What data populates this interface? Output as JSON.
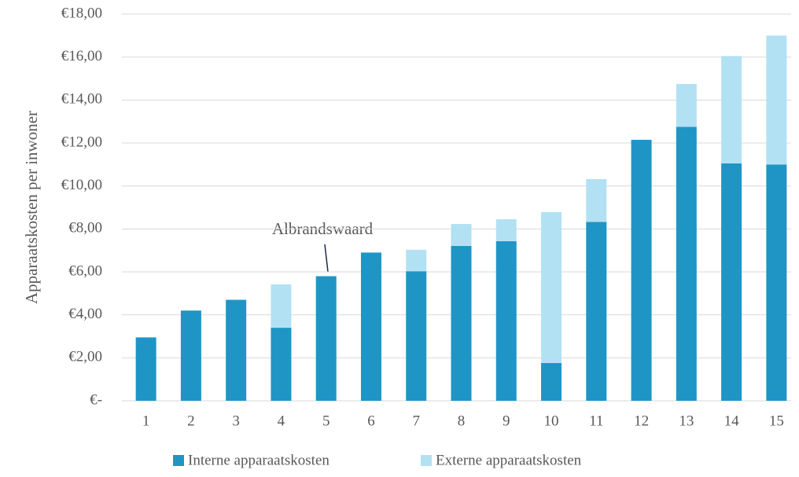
{
  "chart_data": {
    "type": "stacked_bar",
    "y_label": "Apparaatskosten per inwoner",
    "annotation": "Albrandswaard",
    "categories": [
      "1",
      "2",
      "3",
      "4",
      "5",
      "6",
      "7",
      "8",
      "9",
      "10",
      "11",
      "12",
      "13",
      "14",
      "15"
    ],
    "series": [
      {
        "name": "Interne apparaatskosten",
        "color": "#1f95c6",
        "values": [
          2.95,
          4.2,
          4.7,
          3.4,
          5.8,
          6.9,
          6.03,
          7.21,
          7.43,
          1.76,
          8.33,
          12.15,
          12.75,
          11.05,
          11.0
        ]
      },
      {
        "name": "Externe apparaatskosten",
        "color": "#b2e1f3",
        "values": [
          0,
          0,
          0,
          2.02,
          0,
          0,
          1.0,
          1.02,
          1.02,
          7.02,
          1.99,
          0,
          2.0,
          5.0,
          6.0
        ]
      }
    ],
    "ylim": [
      0,
      18
    ],
    "yticks": [
      {
        "value": 0,
        "label": "€-"
      },
      {
        "value": 2,
        "label": "€2,00"
      },
      {
        "value": 4,
        "label": "€4,00"
      },
      {
        "value": 6,
        "label": "€6,00"
      },
      {
        "value": 8,
        "label": "€8,00"
      },
      {
        "value": 10,
        "label": "€10,00"
      },
      {
        "value": 12,
        "label": "€12,00"
      },
      {
        "value": 14,
        "label": "€14,00"
      },
      {
        "value": 16,
        "label": "€16,00"
      },
      {
        "value": 18,
        "label": "€18,00"
      }
    ],
    "grid": true,
    "legend": "bottom"
  }
}
